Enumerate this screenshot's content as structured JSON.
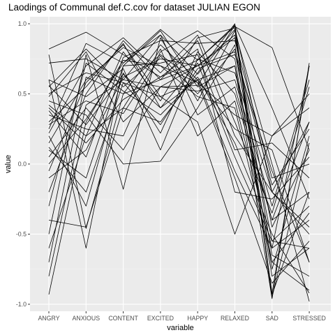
{
  "chart_data": {
    "type": "line",
    "title": "Laodings of Communal def.C.cov for dataset JULIAN EGON",
    "xlabel": "variable",
    "ylabel": "value",
    "categories": [
      "ANGRY",
      "ANXIOUS",
      "CONTENT",
      "EXCITED",
      "HAPPY",
      "RELAXED",
      "SAD",
      "STRESSED"
    ],
    "ylim": [
      -1.05,
      1.05
    ],
    "yticks": [
      -1.0,
      -0.5,
      0.0,
      0.5,
      1.0
    ],
    "ytick_labels": [
      "-1.0",
      "-0.5",
      "0.0",
      "0.5",
      "1.0"
    ],
    "grid": true,
    "panel_color": "#ebebeb",
    "line_color": "#000000",
    "series": [
      {
        "values": [
          0.82,
          0.94,
          0.78,
          0.62,
          0.74,
          0.98,
          0.83,
          0.1
        ]
      },
      {
        "values": [
          0.55,
          0.82,
          0.55,
          0.78,
          0.58,
          0.35,
          0.2,
          0.5
        ]
      },
      {
        "values": [
          0.72,
          0.75,
          0.6,
          0.92,
          0.64,
          0.96,
          -0.92,
          0.7
        ]
      },
      {
        "values": [
          0.78,
          -0.46,
          0.5,
          0.6,
          0.88,
          0.2,
          -0.2,
          -0.45
        ]
      },
      {
        "values": [
          0.6,
          -0.6,
          0.7,
          0.95,
          0.55,
          0.7,
          -0.96,
          0.72
        ]
      },
      {
        "values": [
          0.42,
          0.2,
          0.8,
          0.45,
          0.9,
          0.97,
          -0.2,
          -0.5
        ]
      },
      {
        "values": [
          0.3,
          0.55,
          0.86,
          0.4,
          0.6,
          0.25,
          0.1,
          -0.7
        ]
      },
      {
        "values": [
          0.2,
          -0.3,
          0.65,
          0.22,
          0.8,
          0.5,
          -0.4,
          0.3
        ]
      },
      {
        "values": [
          -0.5,
          0.78,
          -0.18,
          0.9,
          0.45,
          0.95,
          0.0,
          -0.98
        ]
      },
      {
        "values": [
          -0.8,
          0.42,
          0.6,
          0.55,
          0.7,
          0.9,
          -0.45,
          0.1
        ]
      },
      {
        "values": [
          -0.93,
          0.3,
          0.74,
          0.7,
          0.48,
          0.4,
          -0.7,
          -0.9
        ]
      },
      {
        "values": [
          -0.7,
          0.62,
          0.5,
          0.85,
          0.6,
          -0.05,
          -0.6,
          0.7
        ]
      },
      {
        "values": [
          -0.4,
          -0.45,
          0.4,
          0.3,
          0.65,
          1.0,
          -0.93,
          -0.2
        ]
      },
      {
        "values": [
          -0.2,
          0.5,
          0.88,
          0.6,
          0.7,
          0.8,
          -0.55,
          -0.3
        ]
      },
      {
        "values": [
          0.1,
          -0.1,
          0.7,
          0.72,
          0.78,
          0.1,
          0.15,
          -0.1
        ]
      },
      {
        "values": [
          0.5,
          0.65,
          0.58,
          0.48,
          0.3,
          -0.5,
          0.2,
          0.4
        ]
      },
      {
        "values": [
          0.35,
          0.25,
          0.2,
          0.8,
          0.95,
          0.75,
          -0.8,
          -0.6
        ]
      },
      {
        "values": [
          0.25,
          0.86,
          0.72,
          0.96,
          0.74,
          0.99,
          0.4,
          -0.25
        ]
      },
      {
        "values": [
          0.05,
          0.4,
          0.1,
          0.55,
          0.52,
          0.6,
          -0.3,
          0.6
        ]
      },
      {
        "values": [
          -0.1,
          0.1,
          0.62,
          0.75,
          0.7,
          0.92,
          -0.65,
          -0.8
        ]
      },
      {
        "values": [
          0.45,
          0.35,
          0.0,
          0.02,
          0.4,
          0.85,
          -0.75,
          0.2
        ]
      },
      {
        "values": [
          0.15,
          0.6,
          0.83,
          0.7,
          0.58,
          -0.1,
          -0.85,
          -0.55
        ]
      },
      {
        "values": [
          0.38,
          0.05,
          0.76,
          0.88,
          0.86,
          0.88,
          -0.1,
          0.0
        ]
      },
      {
        "values": [
          -0.3,
          0.72,
          0.52,
          0.35,
          0.62,
          0.15,
          -0.5,
          -0.92
        ]
      },
      {
        "values": [
          0.6,
          0.48,
          0.68,
          0.1,
          0.75,
          0.65,
          -0.2,
          0.3
        ]
      },
      {
        "values": [
          -0.6,
          0.2,
          0.4,
          0.82,
          0.2,
          0.45,
          -0.6,
          -0.4
        ]
      },
      {
        "values": [
          0.22,
          0.7,
          0.9,
          0.65,
          0.92,
          0.3,
          -0.35,
          0.55
        ]
      },
      {
        "values": [
          0.48,
          0.8,
          0.3,
          0.55,
          0.56,
          0.99,
          -0.95,
          0.15
        ]
      },
      {
        "values": [
          0.12,
          -0.2,
          0.58,
          0.28,
          0.68,
          0.78,
          -0.05,
          -0.7
        ]
      },
      {
        "values": [
          0.0,
          0.32,
          0.72,
          0.92,
          0.35,
          0.55,
          -0.4,
          -0.2
        ]
      },
      {
        "values": [
          0.4,
          0.15,
          0.46,
          0.62,
          0.82,
          -0.2,
          -0.25,
          0.05
        ]
      },
      {
        "values": [
          -0.05,
          0.58,
          0.85,
          0.48,
          0.6,
          0.7,
          -0.7,
          -0.35
        ]
      },
      {
        "values": [
          0.28,
          0.45,
          0.36,
          0.77,
          0.5,
          0.82,
          -0.15,
          0.25
        ]
      },
      {
        "values": [
          0.56,
          0.28,
          0.64,
          0.4,
          0.72,
          0.05,
          -0.55,
          -0.6
        ]
      }
    ]
  }
}
